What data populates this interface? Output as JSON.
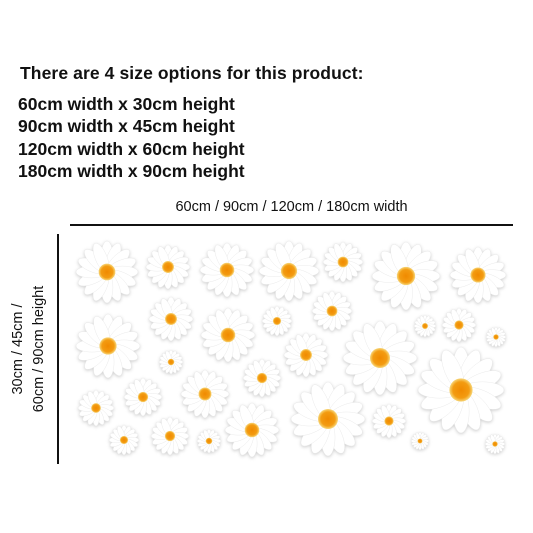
{
  "heading": "There are 4 size options for this product:",
  "size_options": [
    "60cm width x 30cm height",
    "90cm width x 45cm height",
    "120cm width x 60cm height",
    "180cm width x 90cm height"
  ],
  "width_label": "60cm / 90cm / 120cm / 180cm width",
  "height_label_line1": "30cm / 45cm /",
  "height_label_line2": "60cm / 90cm height",
  "colors": {
    "petal": "#ffffff",
    "petal_shadow": "#c8c8c8",
    "center": "#f39c12",
    "center_ring": "#f7d77a"
  },
  "decal": {
    "type": "daisy-stickers",
    "count": 31
  }
}
